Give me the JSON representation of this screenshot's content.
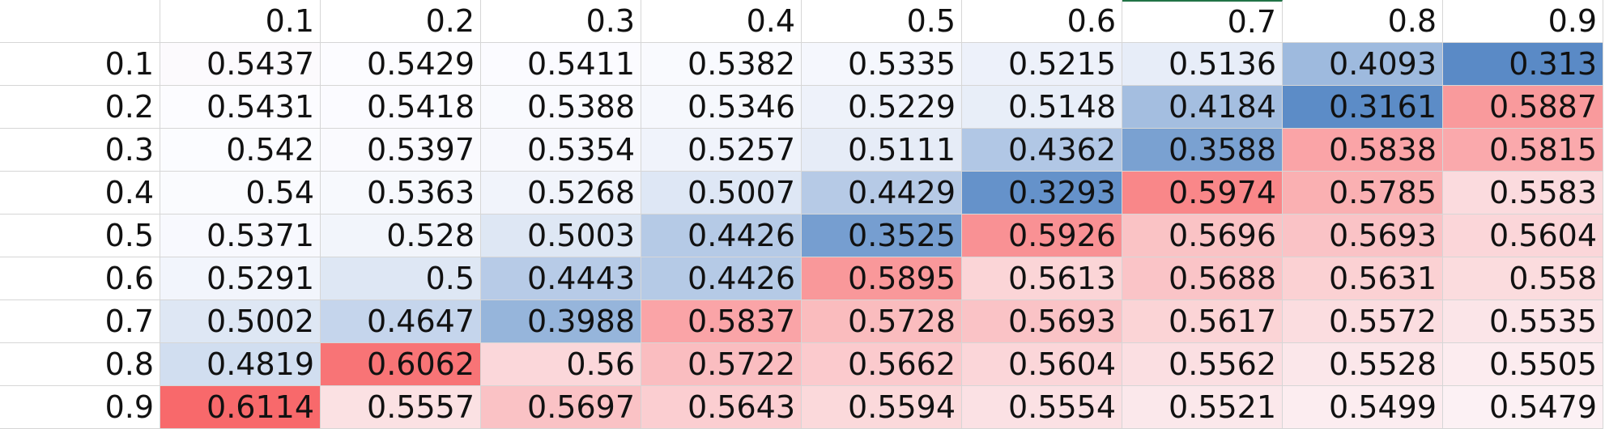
{
  "sheet": {
    "column_headers": [
      "0.1",
      "0.2",
      "0.3",
      "0.4",
      "0.5",
      "0.6",
      "0.7",
      "0.8",
      "0.9"
    ],
    "row_headers": [
      "0.1",
      "0.2",
      "0.3",
      "0.4",
      "0.5",
      "0.6",
      "0.7",
      "0.8",
      "0.9"
    ],
    "rows": [
      [
        "0.5437",
        "0.5429",
        "0.5411",
        "0.5382",
        "0.5335",
        "0.5215",
        "0.5136",
        "0.4093",
        "0.313"
      ],
      [
        "0.5431",
        "0.5418",
        "0.5388",
        "0.5346",
        "0.5229",
        "0.5148",
        "0.4184",
        "0.3161",
        "0.5887"
      ],
      [
        "0.542",
        "0.5397",
        "0.5354",
        "0.5257",
        "0.5111",
        "0.4362",
        "0.3588",
        "0.5838",
        "0.5815"
      ],
      [
        "0.54",
        "0.5363",
        "0.5268",
        "0.5007",
        "0.4429",
        "0.3293",
        "0.5974",
        "0.5785",
        "0.5583"
      ],
      [
        "0.5371",
        "0.528",
        "0.5003",
        "0.4426",
        "0.3525",
        "0.5926",
        "0.5696",
        "0.5693",
        "0.5604"
      ],
      [
        "0.5291",
        "0.5",
        "0.4443",
        "0.4426",
        "0.5895",
        "0.5613",
        "0.5688",
        "0.5631",
        "0.558"
      ],
      [
        "0.5002",
        "0.4647",
        "0.3988",
        "0.5837",
        "0.5728",
        "0.5693",
        "0.5617",
        "0.5572",
        "0.5535"
      ],
      [
        "0.4819",
        "0.6062",
        "0.56",
        "0.5722",
        "0.5662",
        "0.5604",
        "0.5562",
        "0.5528",
        "0.5505"
      ],
      [
        "0.6114",
        "0.5557",
        "0.5697",
        "0.5643",
        "0.5594",
        "0.5554",
        "0.5521",
        "0.5499",
        "0.5479"
      ]
    ]
  },
  "colors": {
    "low": "#5a8ac6",
    "mid": "#fcfcff",
    "high": "#f8696b",
    "selection_border": "#217346",
    "gridline": "#d6d6d6"
  }
}
